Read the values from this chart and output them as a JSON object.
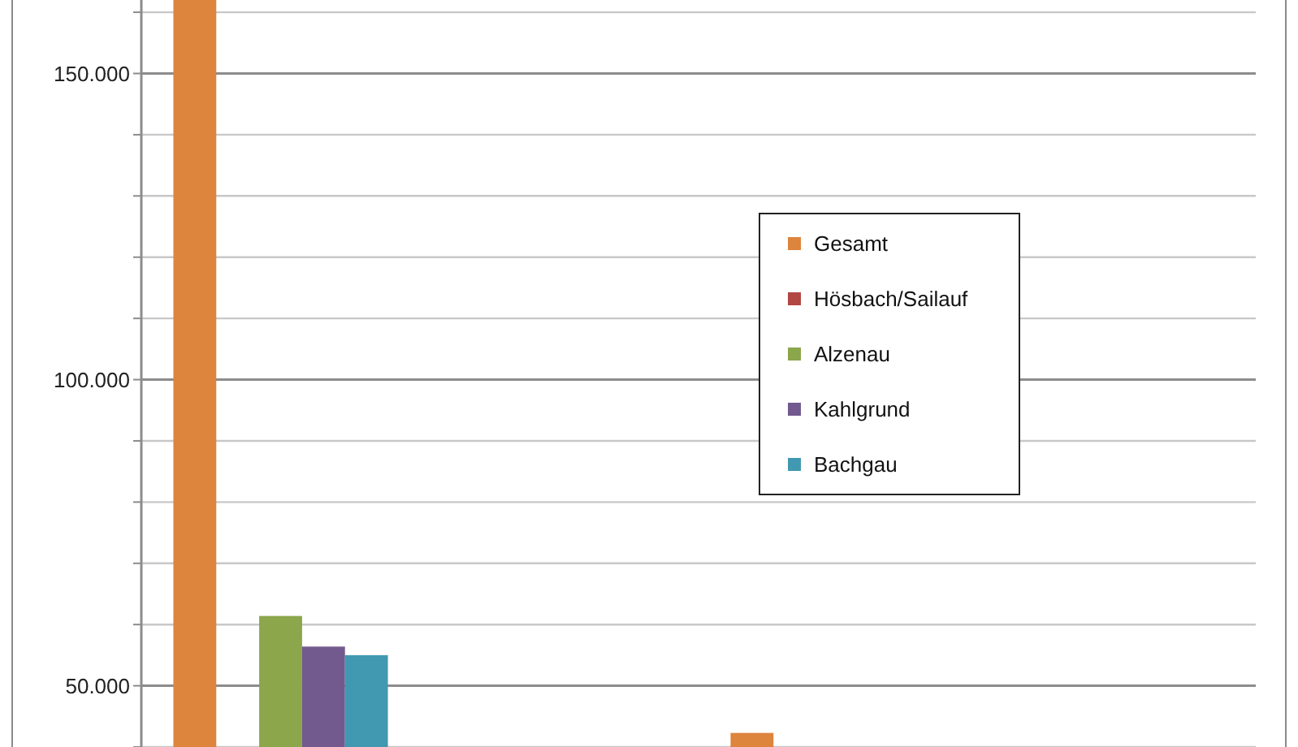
{
  "chart_data": {
    "type": "bar",
    "categories": [
      null,
      null,
      null,
      null
    ],
    "series": [
      {
        "name": "Gesamt",
        "color": "#dd843d",
        "values": [
          162000,
          null,
          42300,
          null
        ]
      },
      {
        "name": "Hösbach/Sailauf",
        "color": "#b24643",
        "values": [
          null,
          null,
          null,
          null
        ]
      },
      {
        "name": "Alzenau",
        "color": "#8ba64b",
        "values": [
          61400,
          null,
          null,
          null
        ]
      },
      {
        "name": "Kahlgrund",
        "color": "#725a8f",
        "values": [
          56400,
          null,
          null,
          null
        ]
      },
      {
        "name": "Bachgau",
        "color": "#4099b0",
        "values": [
          55000,
          null,
          null,
          null
        ]
      }
    ],
    "ylim": [
      40000,
      162000
    ],
    "yticks": [
      {
        "value": 40000,
        "label": null
      },
      {
        "value": 50000,
        "label": "50.000"
      },
      {
        "value": 60000,
        "label": null
      },
      {
        "value": 70000,
        "label": null
      },
      {
        "value": 80000,
        "label": null
      },
      {
        "value": 90000,
        "label": null
      },
      {
        "value": 100000,
        "label": "100.000"
      },
      {
        "value": 110000,
        "label": null
      },
      {
        "value": 120000,
        "label": null
      },
      {
        "value": 130000,
        "label": null
      },
      {
        "value": 140000,
        "label": null
      },
      {
        "value": 150000,
        "label": "150.000"
      },
      {
        "value": 160000,
        "label": null
      }
    ],
    "grid": true,
    "legend": "right"
  }
}
